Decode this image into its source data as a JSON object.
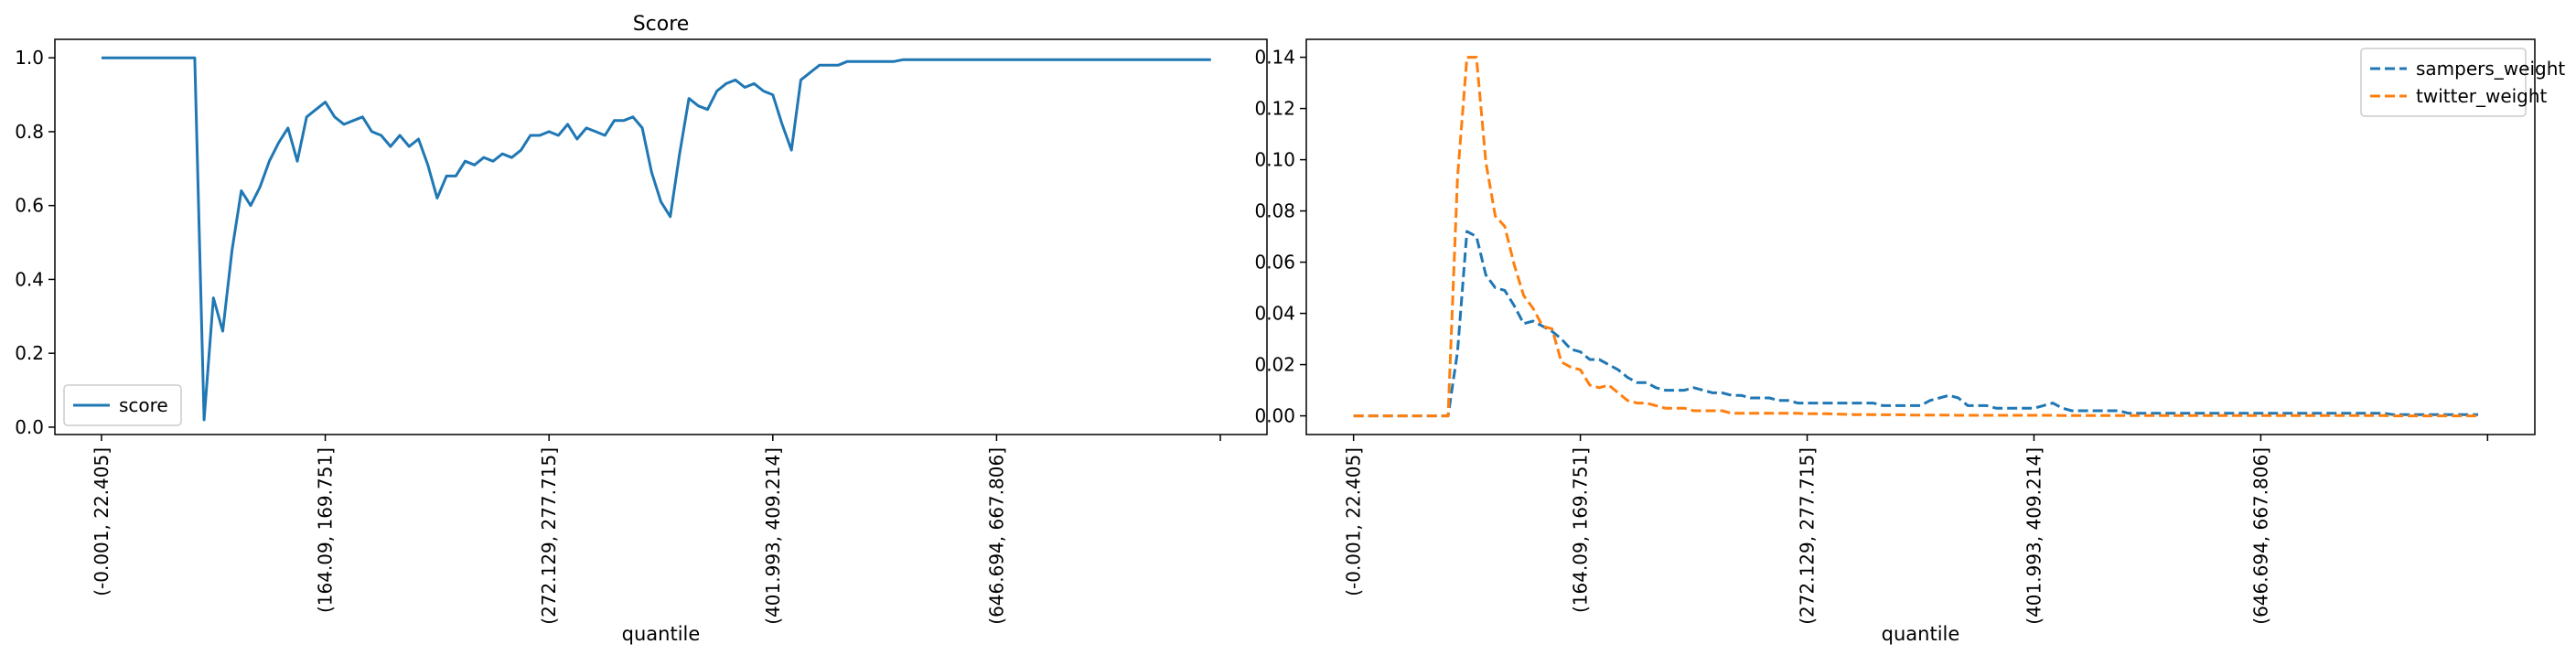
{
  "chart_data": [
    {
      "type": "line",
      "title": "Score",
      "xlabel": "quantile",
      "ylabel": "",
      "ylim": [
        -0.02,
        1.05
      ],
      "xlim": [
        -5,
        125
      ],
      "yticks": [
        "0.0",
        "0.2",
        "0.4",
        "0.6",
        "0.8",
        "1.0"
      ],
      "xticks": [
        {
          "pos": 0,
          "label": "(-0.001, 22.405]"
        },
        {
          "pos": 24,
          "label": "(164.09, 169.751]"
        },
        {
          "pos": 48,
          "label": "(272.129, 277.715]"
        },
        {
          "pos": 72,
          "label": "(401.993, 409.214]"
        },
        {
          "pos": 96,
          "label": "(646.694, 667.806]"
        },
        {
          "pos": 120,
          "label": ""
        }
      ],
      "grid": false,
      "legend": "lower-left",
      "series": [
        {
          "name": "score",
          "color": "#1f77b4",
          "dash": "solid",
          "values": [
            1.0,
            1.0,
            1.0,
            1.0,
            1.0,
            1.0,
            1.0,
            1.0,
            1.0,
            1.0,
            1.0,
            0.02,
            0.35,
            0.26,
            0.48,
            0.64,
            0.6,
            0.65,
            0.72,
            0.77,
            0.81,
            0.72,
            0.84,
            0.86,
            0.88,
            0.84,
            0.82,
            0.83,
            0.84,
            0.8,
            0.79,
            0.76,
            0.79,
            0.76,
            0.78,
            0.71,
            0.62,
            0.68,
            0.68,
            0.72,
            0.71,
            0.73,
            0.72,
            0.74,
            0.73,
            0.75,
            0.79,
            0.79,
            0.8,
            0.79,
            0.82,
            0.78,
            0.81,
            0.8,
            0.79,
            0.83,
            0.83,
            0.84,
            0.81,
            0.69,
            0.61,
            0.57,
            0.74,
            0.89,
            0.87,
            0.86,
            0.91,
            0.93,
            0.94,
            0.92,
            0.93,
            0.91,
            0.9,
            0.82,
            0.75,
            0.94,
            0.96,
            0.98,
            0.98,
            0.98,
            0.99,
            0.99,
            0.99,
            0.99,
            0.99,
            0.99,
            0.995,
            0.995,
            0.995,
            0.995,
            0.995,
            0.995,
            0.995,
            0.995,
            0.995,
            0.995,
            0.995,
            0.995,
            0.995,
            0.995,
            0.995,
            0.995,
            0.995,
            0.995,
            0.995,
            0.995,
            0.995,
            0.995,
            0.995,
            0.995,
            0.995,
            0.995,
            0.995,
            0.995,
            0.995,
            0.995,
            0.995,
            0.995,
            0.995,
            0.995
          ]
        }
      ]
    },
    {
      "type": "line",
      "title": "",
      "xlabel": "quantile",
      "ylabel": "",
      "ylim": [
        -0.0073,
        0.147
      ],
      "xlim": [
        -5,
        125
      ],
      "yticks": [
        "0.00",
        "0.02",
        "0.04",
        "0.06",
        "0.08",
        "0.10",
        "0.12",
        "0.14"
      ],
      "xticks": [
        {
          "pos": 0,
          "label": "(-0.001, 22.405]"
        },
        {
          "pos": 24,
          "label": "(164.09, 169.751]"
        },
        {
          "pos": 48,
          "label": "(272.129, 277.715]"
        },
        {
          "pos": 72,
          "label": "(401.993, 409.214]"
        },
        {
          "pos": 96,
          "label": "(646.694, 667.806]"
        },
        {
          "pos": 120,
          "label": ""
        }
      ],
      "grid": false,
      "legend": "upper-right",
      "series": [
        {
          "name": "sampers_weight",
          "color": "#1f77b4",
          "dash": "dashed",
          "values": [
            0,
            0,
            0,
            0,
            0,
            0,
            0,
            0,
            0,
            0,
            0.0,
            0.025,
            0.072,
            0.07,
            0.055,
            0.05,
            0.049,
            0.043,
            0.036,
            0.037,
            0.035,
            0.033,
            0.03,
            0.026,
            0.025,
            0.022,
            0.022,
            0.02,
            0.018,
            0.015,
            0.013,
            0.013,
            0.011,
            0.01,
            0.01,
            0.01,
            0.011,
            0.01,
            0.009,
            0.009,
            0.008,
            0.008,
            0.007,
            0.007,
            0.007,
            0.006,
            0.006,
            0.005,
            0.005,
            0.005,
            0.005,
            0.005,
            0.005,
            0.005,
            0.005,
            0.005,
            0.004,
            0.004,
            0.004,
            0.004,
            0.004,
            0.006,
            0.007,
            0.008,
            0.007,
            0.004,
            0.004,
            0.004,
            0.003,
            0.003,
            0.003,
            0.003,
            0.003,
            0.004,
            0.005,
            0.003,
            0.002,
            0.002,
            0.002,
            0.002,
            0.002,
            0.002,
            0.001,
            0.001,
            0.001,
            0.001,
            0.001,
            0.001,
            0.001,
            0.001,
            0.001,
            0.001,
            0.001,
            0.001,
            0.001,
            0.001,
            0.001,
            0.001,
            0.001,
            0.001,
            0.001,
            0.001,
            0.001,
            0.001,
            0.001,
            0.001,
            0.001,
            0.001,
            0.001,
            0.001,
            0.0005,
            0.0005,
            0.0005,
            0.0005,
            0.0005,
            0.0005,
            0.0005,
            0.0005,
            0.0005,
            0.0005
          ]
        },
        {
          "name": "twitter_weight",
          "color": "#ff7f0e",
          "dash": "dashed",
          "values": [
            0,
            0,
            0,
            0,
            0,
            0,
            0,
            0,
            0,
            0,
            0.0,
            0.093,
            0.14,
            0.14,
            0.099,
            0.078,
            0.074,
            0.059,
            0.047,
            0.042,
            0.035,
            0.034,
            0.021,
            0.019,
            0.018,
            0.012,
            0.011,
            0.012,
            0.009,
            0.006,
            0.005,
            0.005,
            0.004,
            0.003,
            0.003,
            0.003,
            0.002,
            0.002,
            0.002,
            0.002,
            0.001,
            0.001,
            0.001,
            0.001,
            0.001,
            0.001,
            0.001,
            0.001,
            0.0008,
            0.0008,
            0.0008,
            0.0007,
            0.0006,
            0.0005,
            0.0005,
            0.0005,
            0.0004,
            0.0004,
            0.0004,
            0.0003,
            0.0003,
            0.0003,
            0.0003,
            0.0003,
            0.0002,
            0.0002,
            0.0002,
            0.0002,
            0.0002,
            0.0002,
            0.0002,
            0.0002,
            0.0002,
            0.0002,
            0.0002,
            0.0001,
            0.0001,
            0.0001,
            0.0001,
            0.0001,
            0.0001,
            0.0001,
            0.0001,
            0.0001,
            0.0001,
            0.0001,
            0.0001,
            0.0001,
            0.0001,
            0.0001,
            0.0001,
            0.0001,
            0.0001,
            0.0001,
            0.0001,
            0.0001,
            0.0001,
            0.0001,
            0.0001,
            0.0001,
            0.0001,
            0.0001,
            0.0001,
            0.0001,
            0.0001,
            0.0001,
            0.0001,
            0.0001,
            0.0001,
            0.0001,
            0,
            0,
            0,
            0,
            0,
            0,
            0,
            0,
            0,
            0
          ]
        }
      ]
    }
  ]
}
